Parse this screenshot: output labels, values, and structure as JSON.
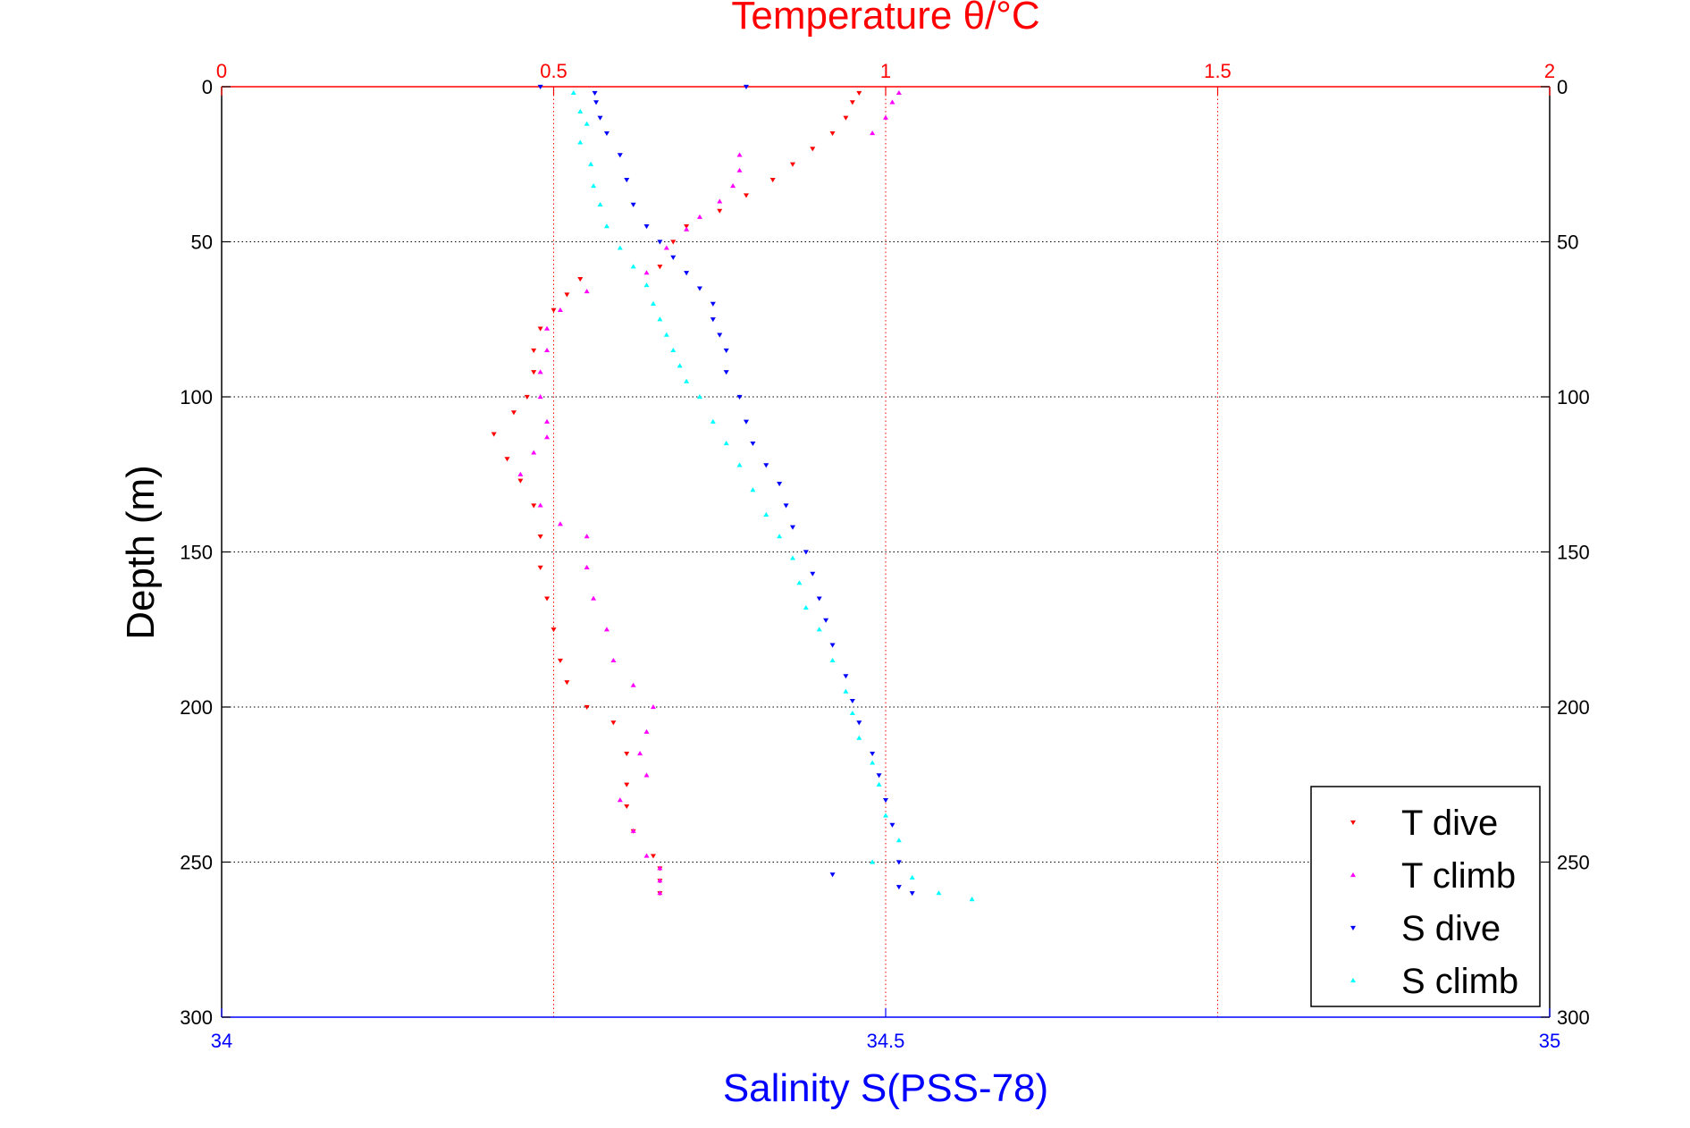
{
  "chart_data": {
    "type": "scatter",
    "title": "Temperature θ/°C",
    "ylabel": "Depth (m)",
    "xlabel": "Salinity S(PSS-78)",
    "temperature_axis": {
      "label": "Temperature θ/°C",
      "range": [
        0,
        2
      ],
      "ticks": [
        0,
        0.5,
        1,
        1.5,
        2
      ],
      "tick_labels": [
        "0",
        "0.5",
        "1",
        "1.5",
        "2"
      ],
      "color": "#ff0000",
      "position": "top"
    },
    "salinity_axis": {
      "label": "Salinity S(PSS-78)",
      "range": [
        34,
        35
      ],
      "ticks": [
        34,
        34.5,
        35
      ],
      "tick_labels": [
        "34",
        "34.5",
        "35"
      ],
      "color": "#0000ff",
      "position": "bottom"
    },
    "depth_axis": {
      "label": "Depth (m)",
      "range": [
        0,
        300
      ],
      "reversed": true,
      "ticks": [
        0,
        50,
        100,
        150,
        200,
        250,
        300
      ],
      "tick_labels": [
        "0",
        "50",
        "100",
        "150",
        "200",
        "250",
        "300"
      ]
    },
    "grid": true,
    "legend": {
      "placement": "bottom-right"
    },
    "series": [
      {
        "name": "T dive",
        "axis": "temperature",
        "color": "#ff0000",
        "marker": "triangle-down",
        "x": [
          0.96,
          0.95,
          0.94,
          0.92,
          0.89,
          0.86,
          0.83,
          0.79,
          0.75,
          0.7,
          0.68,
          0.66,
          0.54,
          0.52,
          0.5,
          0.48,
          0.47,
          0.47,
          0.46,
          0.44,
          0.41,
          0.43,
          0.45,
          0.47,
          0.48,
          0.48,
          0.49,
          0.5,
          0.51,
          0.52,
          0.55,
          0.59,
          0.61,
          0.61,
          0.61,
          0.62,
          0.65,
          0.66,
          0.66,
          0.66
        ],
        "y": [
          2,
          5,
          10,
          15,
          20,
          25,
          30,
          35,
          40,
          45,
          50,
          58,
          62,
          67,
          72,
          78,
          85,
          92,
          100,
          105,
          112,
          120,
          127,
          135,
          145,
          155,
          165,
          175,
          185,
          192,
          200,
          205,
          215,
          225,
          232,
          240,
          248,
          252,
          256,
          260
        ]
      },
      {
        "name": "T climb",
        "axis": "temperature",
        "color": "#ff00ff",
        "marker": "triangle-up",
        "x": [
          1.02,
          1.01,
          1.0,
          0.98,
          0.78,
          0.78,
          0.77,
          0.75,
          0.72,
          0.7,
          0.67,
          0.64,
          0.55,
          0.51,
          0.49,
          0.49,
          0.48,
          0.48,
          0.49,
          0.49,
          0.47,
          0.45,
          0.48,
          0.51,
          0.55,
          0.55,
          0.56,
          0.58,
          0.59,
          0.62,
          0.65,
          0.64,
          0.63,
          0.64,
          0.6,
          0.62,
          0.64,
          0.66,
          0.66,
          0.66
        ],
        "y": [
          2,
          5,
          10,
          15,
          22,
          27,
          32,
          37,
          42,
          46,
          52,
          60,
          66,
          72,
          78,
          85,
          92,
          100,
          108,
          113,
          118,
          125,
          135,
          141,
          145,
          155,
          165,
          175,
          185,
          193,
          200,
          208,
          215,
          222,
          230,
          240,
          248,
          252,
          256,
          260
        ]
      },
      {
        "name": "S dive",
        "axis": "salinity",
        "color": "#0000ff",
        "marker": "triangle-down",
        "x": [
          34.395,
          34.24,
          34.281,
          34.282,
          34.285,
          34.29,
          34.3,
          34.305,
          34.31,
          34.32,
          34.33,
          34.34,
          34.35,
          34.36,
          34.37,
          34.37,
          34.375,
          34.38,
          34.38,
          34.39,
          34.395,
          34.4,
          34.41,
          34.42,
          34.425,
          34.43,
          34.44,
          34.445,
          34.45,
          34.455,
          34.46,
          34.47,
          34.475,
          34.48,
          34.49,
          34.495,
          34.5,
          34.505,
          34.46,
          34.51,
          34.51,
          34.52
        ],
        "y": [
          0,
          0,
          2,
          5,
          10,
          15,
          22,
          30,
          38,
          45,
          50,
          55,
          60,
          65,
          70,
          75,
          80,
          85,
          92,
          100,
          108,
          115,
          122,
          128,
          135,
          142,
          150,
          157,
          165,
          172,
          180,
          190,
          198,
          205,
          215,
          222,
          230,
          238,
          254,
          250,
          258,
          260
        ]
      },
      {
        "name": "S climb",
        "axis": "salinity",
        "color": "#00ffff",
        "marker": "triangle-up",
        "x": [
          34.265,
          34.27,
          34.275,
          34.27,
          34.278,
          34.28,
          34.285,
          34.29,
          34.3,
          34.31,
          34.32,
          34.325,
          34.33,
          34.335,
          34.34,
          34.345,
          34.35,
          34.36,
          34.37,
          34.38,
          34.39,
          34.4,
          34.41,
          34.42,
          34.43,
          34.435,
          34.44,
          34.45,
          34.46,
          34.47,
          34.475,
          34.48,
          34.49,
          34.495,
          34.5,
          34.51,
          34.49,
          34.52,
          34.54,
          34.565
        ],
        "y": [
          2,
          8,
          12,
          18,
          25,
          32,
          38,
          45,
          52,
          58,
          64,
          70,
          75,
          80,
          85,
          90,
          95,
          100,
          108,
          115,
          122,
          130,
          138,
          145,
          152,
          160,
          168,
          175,
          185,
          195,
          202,
          210,
          218,
          225,
          235,
          243,
          250,
          255,
          260,
          262
        ]
      }
    ]
  }
}
